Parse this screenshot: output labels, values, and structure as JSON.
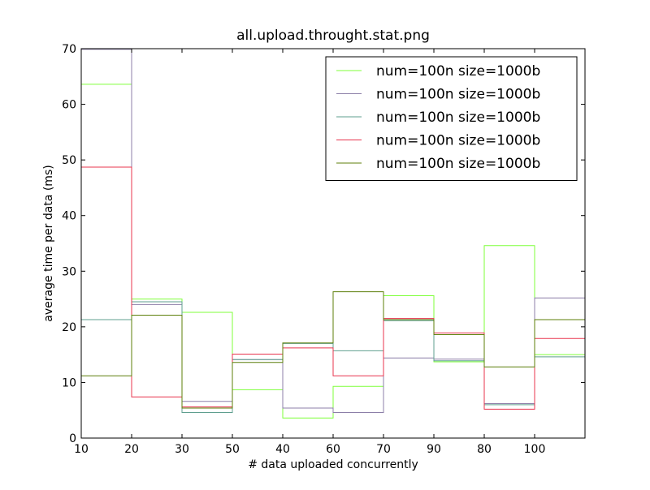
{
  "chart_data": {
    "type": "line",
    "drawstyle": "steps-post",
    "title": "all.upload.throught.stat.png",
    "xlabel": "# data uploaded concurrently",
    "ylabel": "average time per data (ms)",
    "x_tick_labels": [
      "10",
      "20",
      "30",
      "50",
      "40",
      "60",
      "70",
      "90",
      "80",
      "100"
    ],
    "y_ticks": [
      0,
      10,
      20,
      30,
      40,
      50,
      60,
      70
    ],
    "ylim": [
      0,
      70
    ],
    "grid": false,
    "legend_position": "upper-right",
    "series": [
      {
        "name": "num=100n size=1000b",
        "color": "#7fff3a",
        "values": [
          63.6,
          25.0,
          22.6,
          8.7,
          3.6,
          9.3,
          25.6,
          13.7,
          34.6,
          15.0
        ]
      },
      {
        "name": "num=100n size=1000b",
        "color": "#8c7fa8",
        "values": [
          69.9,
          24.0,
          6.6,
          14.1,
          5.4,
          4.6,
          14.4,
          14.2,
          6.2,
          25.2
        ]
      },
      {
        "name": "num=100n size=1000b",
        "color": "#5f9f8f",
        "values": [
          21.3,
          24.5,
          4.6,
          14.1,
          17.0,
          15.7,
          21.1,
          13.9,
          6.0,
          14.6
        ]
      },
      {
        "name": "num=100n size=1000b",
        "color": "#e8344e",
        "values": [
          48.7,
          7.4,
          5.6,
          15.1,
          16.2,
          11.2,
          21.5,
          18.9,
          5.2,
          17.9
        ]
      },
      {
        "name": "num=100n size=1000b",
        "color": "#5c7f0a",
        "values": [
          11.2,
          22.1,
          5.4,
          13.6,
          17.1,
          26.3,
          21.3,
          18.6,
          12.8,
          21.3
        ]
      }
    ]
  }
}
